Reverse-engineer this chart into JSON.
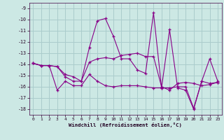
{
  "xlabel": "Windchill (Refroidissement éolien,°C)",
  "background_color": "#cce8e4",
  "grid_color": "#aacccc",
  "line_color": "#880088",
  "xlim": [
    -0.5,
    23.5
  ],
  "ylim": [
    -18.5,
    -8.5
  ],
  "yticks": [
    -9,
    -10,
    -11,
    -12,
    -13,
    -14,
    -15,
    -16,
    -17,
    -18
  ],
  "xticks": [
    0,
    1,
    2,
    3,
    4,
    5,
    6,
    7,
    8,
    9,
    10,
    11,
    12,
    13,
    14,
    15,
    16,
    17,
    18,
    19,
    20,
    21,
    22,
    23
  ],
  "series1": [
    -13.9,
    -14.1,
    -14.1,
    -14.2,
    -15.1,
    -15.5,
    -15.5,
    -12.5,
    -10.1,
    -9.9,
    -11.5,
    -13.5,
    -13.5,
    -14.5,
    -14.8,
    -9.4,
    -16.1,
    -10.9,
    -16.1,
    -16.3,
    -18.0,
    -15.5,
    -13.5,
    -15.5
  ],
  "series2": [
    -13.9,
    -14.1,
    -14.1,
    -14.2,
    -14.9,
    -15.1,
    -15.5,
    -13.8,
    -13.5,
    -13.4,
    -13.5,
    -13.2,
    -13.1,
    -13.0,
    -13.3,
    -13.3,
    -16.0,
    -16.3,
    -15.7,
    -15.6,
    -15.7,
    -15.9,
    -15.8,
    -15.6
  ],
  "series3": [
    -13.9,
    -14.1,
    -14.1,
    -16.3,
    -15.5,
    -15.9,
    -15.9,
    -14.9,
    -15.5,
    -15.9,
    -16.0,
    -15.9,
    -15.9,
    -15.9,
    -16.0,
    -16.1,
    -16.1,
    -16.1,
    -16.0,
    -16.0,
    -17.9,
    -15.5,
    -15.7,
    -15.6
  ]
}
